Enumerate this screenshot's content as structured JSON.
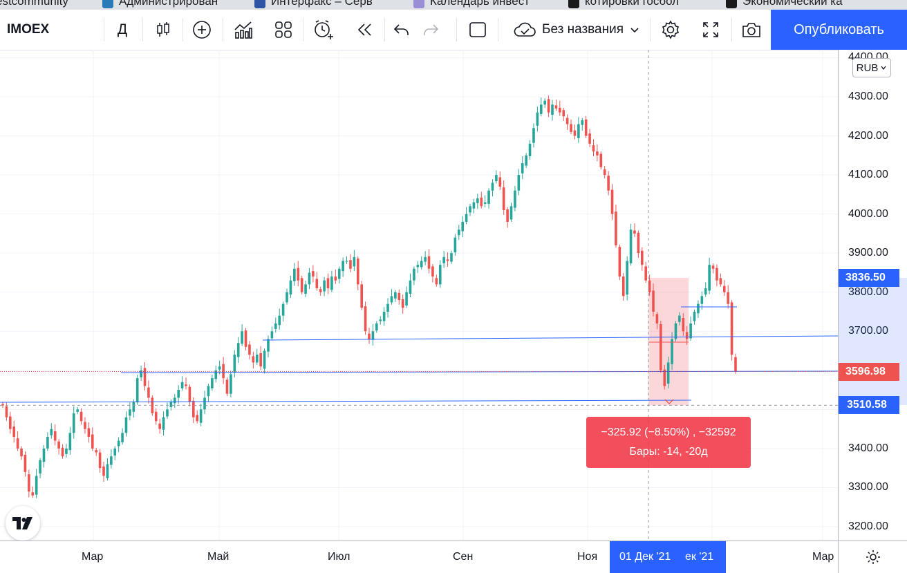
{
  "bookmarks": [
    {
      "label": "estcommunity",
      "color": "#8a8a8a"
    },
    {
      "label": "Администрирован",
      "color": "#2a7ab8"
    },
    {
      "label": "Интерфакс – Серв",
      "color": "#2f55a4"
    },
    {
      "label": "Календарь инвест",
      "color": "#9a8fd6"
    },
    {
      "label": "котировки госбол",
      "color": "#1a1a1a"
    },
    {
      "label": "Экономический ка",
      "color": "#1a1a1a"
    }
  ],
  "toolbar": {
    "symbol": "IMOEX",
    "interval": "Д",
    "layout_name": "Без названия",
    "publish_label": "Опубликовать",
    "icons": [
      "candles-icon",
      "plus-circle-icon",
      "indicators-icon",
      "templates-icon",
      "alert-icon",
      "replay-icon",
      "undo-icon",
      "redo-icon",
      "layout-square-icon",
      "cloud-icon",
      "chevron-down-icon",
      "gear-icon",
      "fullscreen-icon",
      "camera-icon"
    ]
  },
  "price_scale": {
    "currency": "RUB",
    "labels": [
      "4300.00",
      "4200.00",
      "4100.00",
      "4000.00",
      "3900.00",
      "3800.00",
      "3700.00",
      "3400.00",
      "3300.00",
      "3200.00"
    ],
    "partial_top_label": "4400.00",
    "last_price": "3596.98",
    "crosshair_price": "3510.58",
    "measure_top_price": "3836.50",
    "colors": {
      "down": "#ef5350",
      "up": "#26a69a",
      "accent": "#2962ff"
    }
  },
  "time_scale": {
    "labels": [
      "Мар",
      "Май",
      "Июл",
      "Сен",
      "Ноя",
      "Мар"
    ],
    "crosshair_date": "01 Дек '21",
    "partial_label": "ек '21"
  },
  "measure": {
    "line1": "−325.92 (−8.50%) , −32592",
    "line2": "Бары: -14, -20д"
  },
  "chart_data": {
    "type": "candlestick",
    "symbol": "IMOEX",
    "ylim": [
      3170,
      4420
    ],
    "series_close": [
      3510,
      3480,
      3450,
      3430,
      3400,
      3380,
      3340,
      3290,
      3280,
      3330,
      3370,
      3400,
      3430,
      3450,
      3420,
      3400,
      3380,
      3400,
      3440,
      3490,
      3500,
      3470,
      3450,
      3430,
      3400,
      3390,
      3350,
      3330,
      3360,
      3380,
      3400,
      3420,
      3440,
      3480,
      3500,
      3520,
      3580,
      3600,
      3560,
      3530,
      3490,
      3470,
      3450,
      3480,
      3500,
      3520,
      3530,
      3550,
      3570,
      3560,
      3520,
      3480,
      3470,
      3500,
      3530,
      3560,
      3580,
      3600,
      3610,
      3580,
      3540,
      3590,
      3640,
      3670,
      3700,
      3660,
      3640,
      3620,
      3640,
      3610,
      3650,
      3680,
      3700,
      3720,
      3740,
      3770,
      3800,
      3830,
      3860,
      3830,
      3800,
      3820,
      3850,
      3840,
      3810,
      3800,
      3830,
      3810,
      3840,
      3830,
      3860,
      3880,
      3880,
      3860,
      3890,
      3820,
      3760,
      3700,
      3680,
      3700,
      3720,
      3730,
      3750,
      3770,
      3790,
      3800,
      3780,
      3760,
      3800,
      3830,
      3860,
      3870,
      3880,
      3890,
      3860,
      3840,
      3820,
      3870,
      3890,
      3880,
      3900,
      3940,
      3960,
      3980,
      4000,
      4020,
      4030,
      4040,
      4020,
      4030,
      4060,
      4080,
      4100,
      4070,
      4010,
      3980,
      4020,
      4060,
      4100,
      4130,
      4150,
      4180,
      4220,
      4260,
      4280,
      4290,
      4260,
      4280,
      4270,
      4260,
      4250,
      4230,
      4210,
      4200,
      4230,
      4240,
      4200,
      4180,
      4160,
      4150,
      4120,
      4100,
      4060,
      4000,
      3920,
      3840,
      3790,
      3880,
      3960,
      3950,
      3900,
      3870,
      3830,
      3800,
      3750,
      3720,
      3600,
      3560,
      3620,
      3680,
      3720,
      3740,
      3700,
      3680,
      3720,
      3750,
      3770,
      3790,
      3810,
      3870,
      3860,
      3830,
      3820,
      3800,
      3770,
      3640,
      3597
    ]
  }
}
